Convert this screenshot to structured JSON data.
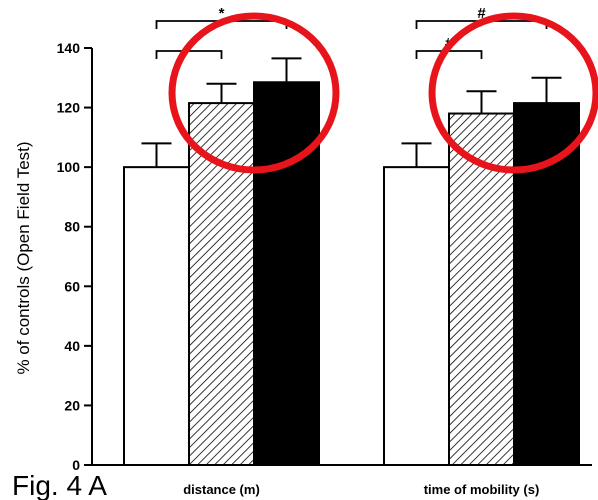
{
  "chart_data": {
    "type": "bar",
    "ylabel": "% of controls (Open Field Test)",
    "ylim": [
      0,
      140
    ],
    "yticks": [
      0,
      20,
      40,
      60,
      80,
      100,
      120,
      140
    ],
    "categories": [
      "distance (m)",
      "time of mobility (s)"
    ],
    "series": [
      {
        "fill": "white",
        "values": [
          100,
          100
        ],
        "errors": [
          8,
          8
        ]
      },
      {
        "fill": "hatched",
        "values": [
          121.5,
          118
        ],
        "errors": [
          6.5,
          7.5
        ]
      },
      {
        "fill": "black",
        "values": [
          128.5,
          121.5
        ],
        "errors": [
          8,
          8.5
        ]
      }
    ],
    "significance": [
      {
        "group": 0,
        "from": 0,
        "to": 2,
        "label": "*"
      },
      {
        "group": 0,
        "from": 0,
        "to": 1,
        "label": ""
      },
      {
        "group": 1,
        "from": 0,
        "to": 2,
        "label": "#"
      },
      {
        "group": 1,
        "from": 0,
        "to": 1,
        "label": "#"
      }
    ],
    "highlights": [
      {
        "group": 0,
        "color": "#e8141c"
      },
      {
        "group": 1,
        "color": "#e8141c"
      }
    ],
    "figure_label": "Fig. 4 A"
  }
}
